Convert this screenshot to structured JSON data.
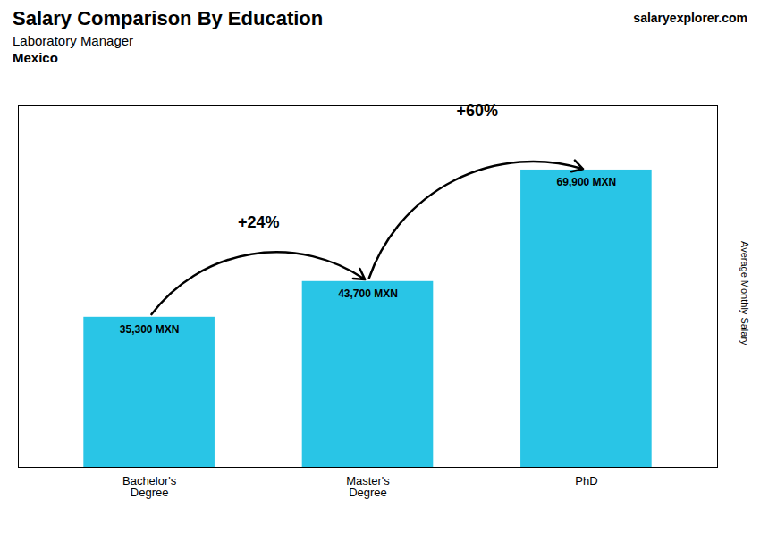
{
  "chart_data": {
    "type": "bar",
    "title": "Salary Comparison By Education",
    "subtitle": [
      "Laboratory Manager",
      "Mexico"
    ],
    "ylabel": "Average Monthly Salary",
    "categories": [
      "Bachelor's\nDegree",
      "Master's\nDegree",
      "PhD"
    ],
    "values": [
      35300,
      43700,
      69900
    ],
    "value_labels": [
      "35,300 MXN",
      "43,700 MXN",
      "69,900 MXN"
    ],
    "data_labels": true,
    "color": "#29c5e6",
    "ylim": [
      0,
      85000
    ],
    "yticks": [],
    "tick_labels": "x",
    "grid": false,
    "annotations": [
      {
        "text": "salary"
      },
      {
        "text": "explorer.com"
      },
      {
        "text": "+24%",
        "from": "Bachelor's\nDegree",
        "to": "Master's\nDegree"
      },
      {
        "text": "+60%",
        "from": "Master's\nDegree",
        "to": "PhD"
      }
    ]
  }
}
